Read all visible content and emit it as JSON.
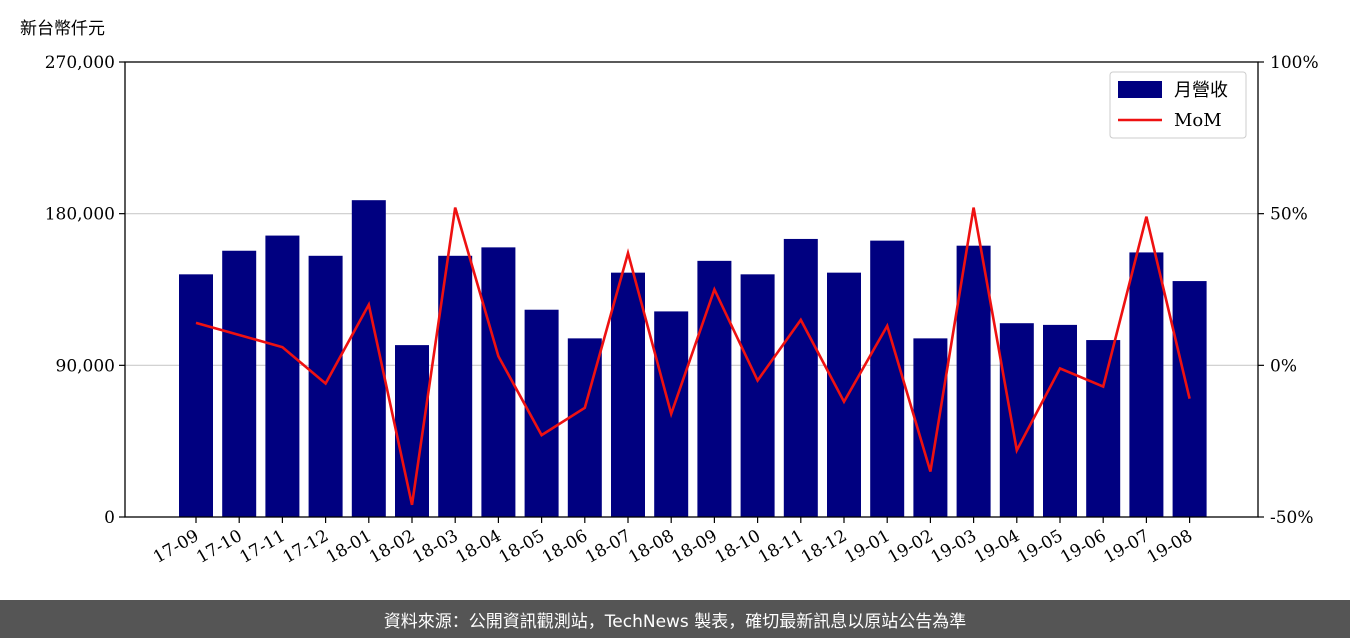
{
  "colors": {
    "bar": "#000080",
    "line": "#ee1111",
    "grid": "#cccccc",
    "footer_bg": "#555555",
    "footer_text": "#ffffff"
  },
  "footer": {
    "text": "資料來源：公開資訊觀測站，TechNews 製表，確切最新訊息以原站公告為準"
  },
  "chart_data": {
    "type": "bar",
    "y_unit_label": "新台幣仟元",
    "categories": [
      "17-09",
      "17-10",
      "17-11",
      "17-12",
      "18-01",
      "18-02",
      "18-03",
      "18-04",
      "18-05",
      "18-06",
      "18-07",
      "18-08",
      "18-09",
      "18-10",
      "18-11",
      "18-12",
      "19-01",
      "19-02",
      "19-03",
      "19-04",
      "19-05",
      "19-06",
      "19-07",
      "19-08"
    ],
    "series": [
      {
        "name": "月營收",
        "type": "bar",
        "axis": "left",
        "values": [
          144000,
          158000,
          167000,
          155000,
          188000,
          102000,
          155000,
          160000,
          123000,
          106000,
          145000,
          122000,
          152000,
          144000,
          165000,
          145000,
          164000,
          106000,
          161000,
          115000,
          114000,
          105000,
          157000,
          140000
        ]
      },
      {
        "name": "MoM",
        "type": "line",
        "axis": "right",
        "values": [
          14,
          10,
          6,
          -6,
          20,
          -46,
          52,
          3,
          -23,
          -14,
          37,
          -16,
          25,
          -5,
          15,
          -12,
          13,
          -35,
          52,
          -28,
          -1,
          -7,
          49,
          -11
        ]
      }
    ],
    "y_left": {
      "lim": [
        0,
        270000
      ],
      "ticks": [
        0,
        90000,
        180000,
        270000
      ],
      "tick_labels": [
        "0",
        "90,000",
        "180,000",
        "270,000"
      ]
    },
    "y_right": {
      "lim": [
        -50,
        100
      ],
      "ticks": [
        -50,
        0,
        50,
        100
      ],
      "tick_labels": [
        "-50%",
        "0%",
        "50%",
        "100%"
      ]
    },
    "grid": true,
    "legend": "top-right"
  }
}
